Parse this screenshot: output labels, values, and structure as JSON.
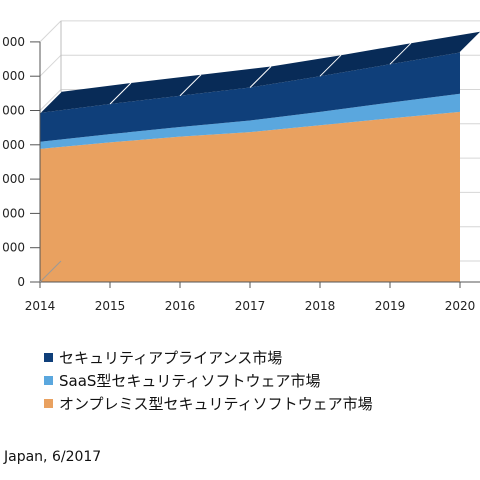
{
  "chart_data": {
    "type": "area",
    "stacked": true,
    "three_d": true,
    "x": [
      "2014",
      "2015",
      "2016",
      "2017",
      "2018",
      "2019",
      "2020"
    ],
    "y_tick_labels": [
      "000",
      "000",
      "000",
      "000",
      "000",
      "000",
      "000",
      "0"
    ],
    "y_ticks_count_visible": 8,
    "series": [
      {
        "name": "オンプレミス型セキュリティソフトウェア市場",
        "color": "#E9A160",
        "values": [
          3.88,
          4.07,
          4.24,
          4.37,
          4.57,
          4.77,
          4.96
        ]
      },
      {
        "name": "SaaS型セキュリティソフトウェア市場",
        "color": "#5AA7DE",
        "values": [
          0.21,
          0.24,
          0.28,
          0.34,
          0.39,
          0.46,
          0.53
        ]
      },
      {
        "name": "セキュリティアプライアンス市場",
        "color": "#0F3F7A",
        "values": [
          0.84,
          0.88,
          0.91,
          0.96,
          1.04,
          1.12,
          1.2
        ]
      }
    ],
    "ylim": [
      0,
      7
    ],
    "grid": true,
    "legend_position": "bottom"
  },
  "source_text": "Japan, 6/2017"
}
